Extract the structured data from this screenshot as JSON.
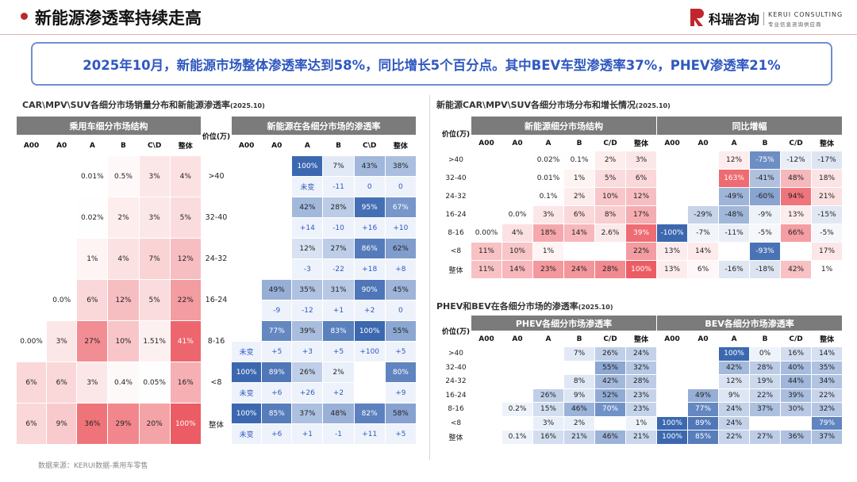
{
  "header": {
    "title": "新能源渗透率持续走高",
    "logo_cn": "科瑞咨询",
    "logo_en": "KERUI CONSULTING",
    "logo_sub": "专业信息咨询供应商"
  },
  "summary": "2025年10月，新能源市场整体渗透率达到58%，同比增长5个百分点。其中BEV车型渗透率37%，PHEV渗透率21%",
  "source": "数据来源：KERUI数据-乘用车零售",
  "left": {
    "title": "CAR\\MPV\\SUV各细分市场销量分布和新能源渗透率",
    "date": "(2025.10)",
    "group_structure": "乘用车细分市场结构",
    "group_penetration": "新能源在各细分市场的渗透率",
    "price_label": "价位(万)",
    "cols": [
      "A00",
      "A0",
      "A",
      "B",
      "C\\D",
      "整体"
    ],
    "rows": [
      {
        "price": ">40",
        "structure": [
          "",
          "",
          "0.01%",
          "0.5%",
          "3%",
          "4%"
        ],
        "pen": [
          "",
          "",
          "100%",
          "7%",
          "43%",
          "38%"
        ],
        "chg": [
          "",
          "",
          "未变",
          "-11",
          "0",
          "0"
        ]
      },
      {
        "price": "32-40",
        "structure": [
          "",
          "",
          "0.02%",
          "2%",
          "3%",
          "5%"
        ],
        "pen": [
          "",
          "",
          "42%",
          "28%",
          "95%",
          "67%"
        ],
        "chg": [
          "",
          "",
          "+14",
          "-10",
          "+16",
          "+10"
        ]
      },
      {
        "price": "24-32",
        "structure": [
          "",
          "",
          "1%",
          "4%",
          "7%",
          "12%"
        ],
        "pen": [
          "",
          "",
          "12%",
          "27%",
          "86%",
          "62%"
        ],
        "chg": [
          "",
          "",
          "-3",
          "-22",
          "+18",
          "+8"
        ]
      },
      {
        "price": "16-24",
        "structure": [
          "",
          "0.0%",
          "6%",
          "12%",
          "5%",
          "22%"
        ],
        "pen": [
          "",
          "49%",
          "35%",
          "31%",
          "90%",
          "45%"
        ],
        "chg": [
          "",
          "-9",
          "-12",
          "+1",
          "+2",
          "0"
        ]
      },
      {
        "price": "8-16",
        "structure": [
          "0.00%",
          "3%",
          "27%",
          "10%",
          "1.51%",
          "41%"
        ],
        "pen": [
          "",
          "77%",
          "39%",
          "83%",
          "100%",
          "55%"
        ],
        "chg": [
          "未变",
          "+5",
          "+3",
          "+5",
          "+100",
          "+5"
        ]
      },
      {
        "price": "<8",
        "structure": [
          "6%",
          "6%",
          "3%",
          "0.4%",
          "0.05%",
          "16%"
        ],
        "pen": [
          "100%",
          "89%",
          "26%",
          "2%",
          "",
          "80%"
        ],
        "chg": [
          "未变",
          "+6",
          "+26",
          "+2",
          "",
          "+9"
        ]
      },
      {
        "price": "整体",
        "structure": [
          "6%",
          "9%",
          "36%",
          "29%",
          "20%",
          "100%"
        ],
        "pen": [
          "100%",
          "85%",
          "37%",
          "48%",
          "82%",
          "58%"
        ],
        "chg": [
          "未变",
          "+6",
          "+1",
          "-1",
          "+11",
          "+5"
        ]
      }
    ]
  },
  "right_top": {
    "title": "新能源CAR\\MPV\\SUV各细分市场分布和增长情况",
    "date": "(2025.10)",
    "group_structure": "新能源细分市场结构",
    "group_growth": "同比增幅",
    "price_label": "价位(万)",
    "cols": [
      "A00",
      "A0",
      "A",
      "B",
      "C/D",
      "整体"
    ],
    "rows": [
      {
        "price": ">40",
        "structure": [
          "",
          "",
          "0.02%",
          "0.1%",
          "2%",
          "3%"
        ],
        "growth": [
          "",
          "",
          "12%",
          "-75%",
          "-12%",
          "-17%"
        ]
      },
      {
        "price": "32-40",
        "structure": [
          "",
          "",
          "0.01%",
          "1%",
          "5%",
          "6%"
        ],
        "growth": [
          "",
          "",
          "163%",
          "-41%",
          "48%",
          "18%"
        ]
      },
      {
        "price": "24-32",
        "structure": [
          "",
          "",
          "0.1%",
          "2%",
          "10%",
          "12%"
        ],
        "growth": [
          "",
          "",
          "-49%",
          "-60%",
          "94%",
          "21%"
        ]
      },
      {
        "price": "16-24",
        "structure": [
          "",
          "0.0%",
          "3%",
          "6%",
          "8%",
          "17%"
        ],
        "growth": [
          "",
          "-29%",
          "-48%",
          "-9%",
          "13%",
          "-15%"
        ]
      },
      {
        "price": "8-16",
        "structure": [
          "0.00%",
          "4%",
          "18%",
          "14%",
          "2.6%",
          "39%"
        ],
        "growth": [
          "-100%",
          "-7%",
          "-11%",
          "-5%",
          "66%",
          "-5%"
        ]
      },
      {
        "price": "<8",
        "structure": [
          "11%",
          "10%",
          "1%",
          "",
          "",
          "22%"
        ],
        "growth": [
          "13%",
          "14%",
          "",
          "-93%",
          "",
          "17%"
        ]
      },
      {
        "price": "整体",
        "structure": [
          "11%",
          "14%",
          "23%",
          "24%",
          "28%",
          "100%"
        ],
        "growth": [
          "13%",
          "6%",
          "-16%",
          "-18%",
          "42%",
          "1%"
        ]
      }
    ]
  },
  "right_bottom": {
    "title": "PHEV和BEV在各细分市场的渗透率",
    "date": "(2025.10)",
    "group_phev": "PHEV各细分市场渗透率",
    "group_bev": "BEV各细分市场渗透率",
    "price_label": "价位(万)",
    "cols": [
      "A00",
      "A0",
      "A",
      "B",
      "C/D",
      "整体"
    ],
    "rows": [
      {
        "price": ">40",
        "phev": [
          "",
          "",
          "",
          "7%",
          "26%",
          "24%"
        ],
        "bev": [
          "",
          "",
          "100%",
          "0%",
          "16%",
          "14%"
        ]
      },
      {
        "price": "32-40",
        "phev": [
          "",
          "",
          "",
          "",
          "55%",
          "32%"
        ],
        "bev": [
          "",
          "",
          "42%",
          "28%",
          "40%",
          "35%"
        ]
      },
      {
        "price": "24-32",
        "phev": [
          "",
          "",
          "",
          "8%",
          "42%",
          "28%"
        ],
        "bev": [
          "",
          "",
          "12%",
          "19%",
          "44%",
          "34%"
        ]
      },
      {
        "price": "16-24",
        "phev": [
          "",
          "",
          "26%",
          "9%",
          "52%",
          "23%"
        ],
        "bev": [
          "",
          "49%",
          "9%",
          "22%",
          "39%",
          "22%"
        ]
      },
      {
        "price": "8-16",
        "phev": [
          "",
          "0.2%",
          "15%",
          "46%",
          "70%",
          "23%"
        ],
        "bev": [
          "",
          "77%",
          "24%",
          "37%",
          "30%",
          "32%"
        ]
      },
      {
        "price": "<8",
        "phev": [
          "",
          "",
          "3%",
          "2%",
          "",
          "1%"
        ],
        "bev": [
          "100%",
          "89%",
          "24%",
          "",
          "",
          "79%"
        ]
      },
      {
        "price": "整体",
        "phev": [
          "",
          "0.1%",
          "16%",
          "21%",
          "46%",
          "21%"
        ],
        "bev": [
          "100%",
          "85%",
          "22%",
          "27%",
          "36%",
          "37%"
        ]
      }
    ]
  },
  "colors": {
    "accent_red": "#c0262d",
    "summary_blue": "#2f58c0",
    "header_grey": "#7b7b7b"
  }
}
